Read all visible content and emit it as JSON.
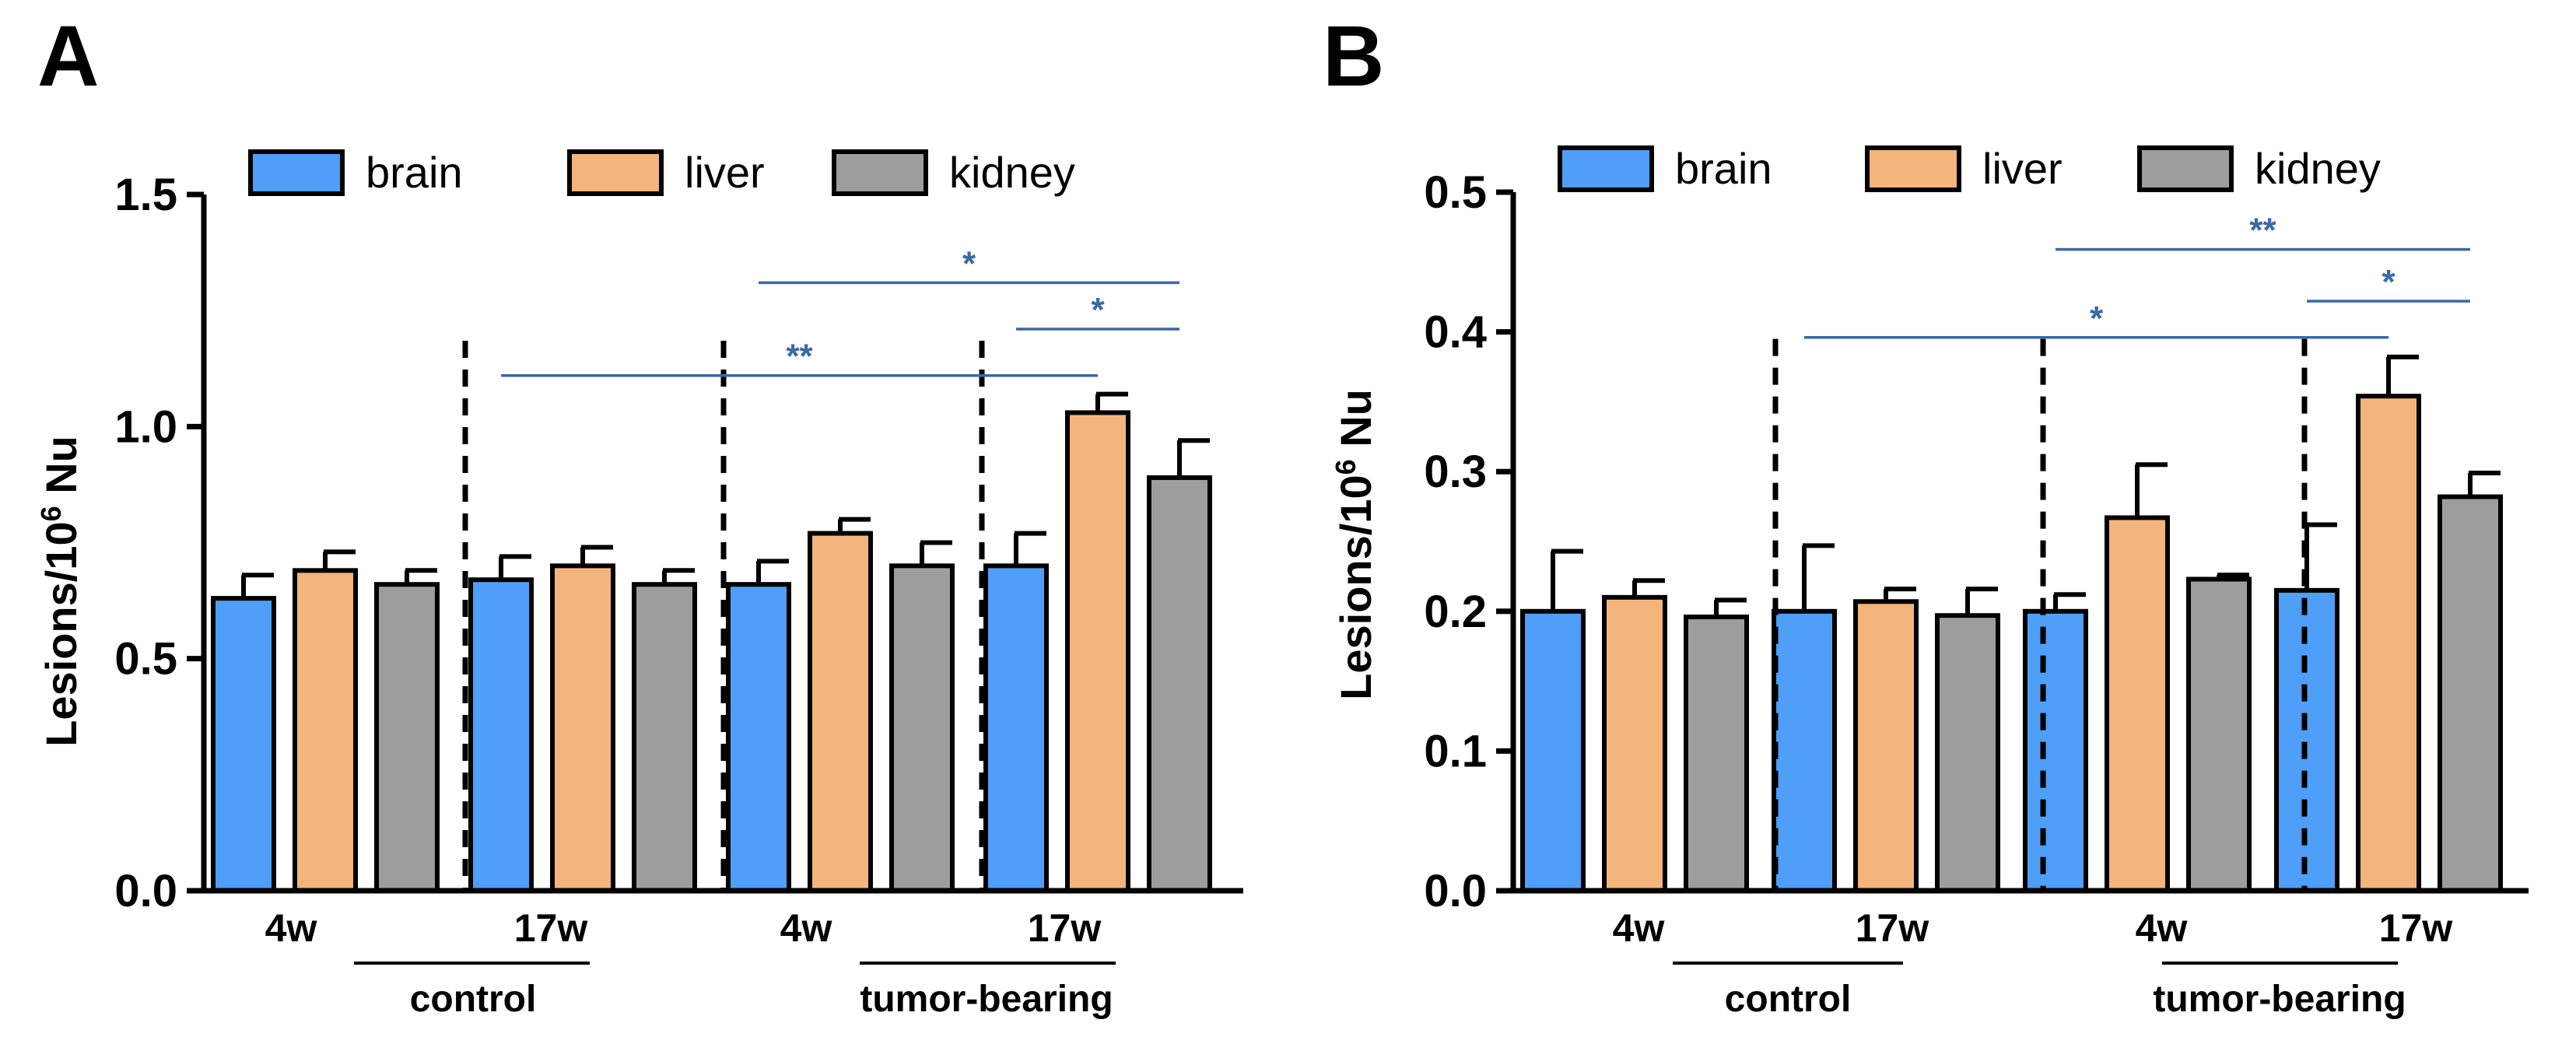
{
  "colors": {
    "brain": "#4f9ef8",
    "liver": "#f3b57c",
    "kidney": "#9d9d9d",
    "axis": "#000000",
    "sig": "#3b68a6"
  },
  "chart_data": [
    {
      "panel": "A",
      "type": "bar",
      "ylabel": "Lesions/10",
      "ylabel_sup": "6",
      "ylabel_unit": " Nu",
      "ylim": [
        0,
        1.5
      ],
      "yticks": [
        {
          "value": 0.0,
          "label": "0.0"
        },
        {
          "value": 0.5,
          "label": "0.5"
        },
        {
          "value": 1.0,
          "label": "1.0"
        },
        {
          "value": 1.5,
          "label": "1.5"
        }
      ],
      "legend": [
        "brain",
        "liver",
        "kidney"
      ],
      "categories": [
        "4w",
        "17w",
        "4w",
        "17w"
      ],
      "group_labels": [
        "control",
        "tumor-bearing"
      ],
      "series": [
        {
          "name": "brain",
          "values": [
            0.63,
            0.67,
            0.66,
            0.7
          ],
          "errors": [
            0.05,
            0.05,
            0.05,
            0.07
          ]
        },
        {
          "name": "liver",
          "values": [
            0.69,
            0.7,
            0.77,
            1.03
          ],
          "errors": [
            0.04,
            0.04,
            0.03,
            0.04
          ]
        },
        {
          "name": "kidney",
          "values": [
            0.66,
            0.66,
            0.7,
            0.89
          ],
          "errors": [
            0.03,
            0.03,
            0.05,
            0.08
          ]
        }
      ],
      "significance": [
        {
          "label": "*",
          "from": [
            2,
            "brain"
          ],
          "to": [
            3,
            "kidney"
          ],
          "y": 1.31
        },
        {
          "label": "*",
          "from": [
            3,
            "brain"
          ],
          "to": [
            3,
            "kidney"
          ],
          "y": 1.21
        },
        {
          "label": "**",
          "from": [
            1,
            "brain"
          ],
          "to": [
            3,
            "liver"
          ],
          "y": 1.11
        }
      ]
    },
    {
      "panel": "B",
      "type": "bar",
      "ylabel": "Lesions/10",
      "ylabel_sup": "6",
      "ylabel_unit": " Nu",
      "ylim": [
        0,
        0.5
      ],
      "yticks": [
        {
          "value": 0.0,
          "label": "0.0"
        },
        {
          "value": 0.1,
          "label": "0.1"
        },
        {
          "value": 0.2,
          "label": "0.2"
        },
        {
          "value": 0.3,
          "label": "0.3"
        },
        {
          "value": 0.4,
          "label": "0.4"
        },
        {
          "value": 0.5,
          "label": "0.5"
        }
      ],
      "legend": [
        "brain",
        "liver",
        "kidney"
      ],
      "categories": [
        "4w",
        "17w",
        "4w",
        "17w"
      ],
      "group_labels": [
        "control",
        "tumor-bearing"
      ],
      "series": [
        {
          "name": "brain",
          "values": [
            0.2,
            0.2,
            0.2,
            0.215
          ],
          "errors": [
            0.043,
            0.047,
            0.012,
            0.047
          ]
        },
        {
          "name": "liver",
          "values": [
            0.21,
            0.207,
            0.267,
            0.354
          ],
          "errors": [
            0.012,
            0.009,
            0.038,
            0.028
          ]
        },
        {
          "name": "kidney",
          "values": [
            0.196,
            0.197,
            0.223,
            0.282
          ],
          "errors": [
            0.012,
            0.019,
            0.003,
            0.017
          ]
        }
      ],
      "significance": [
        {
          "label": "**",
          "from": [
            2,
            "brain"
          ],
          "to": [
            3,
            "kidney"
          ],
          "y": 0.459
        },
        {
          "label": "*",
          "from": [
            3,
            "brain"
          ],
          "to": [
            3,
            "kidney"
          ],
          "y": 0.422
        },
        {
          "label": "*",
          "from": [
            1,
            "brain"
          ],
          "to": [
            3,
            "liver"
          ],
          "y": 0.396
        }
      ]
    }
  ]
}
